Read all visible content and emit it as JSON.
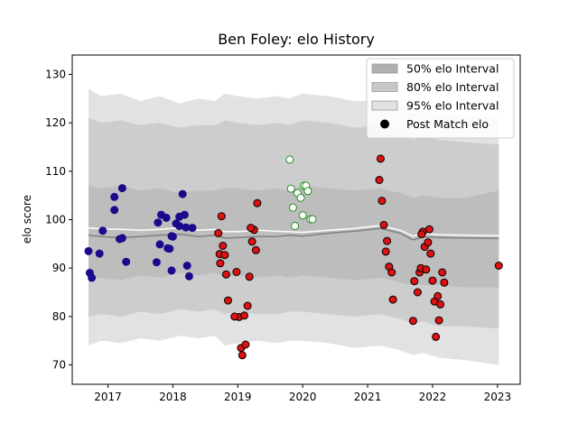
{
  "chart_data": {
    "type": "scatter",
    "title": "Ben Foley: elo History",
    "xlabel": "",
    "ylabel": "elo score",
    "xlim": [
      2016.45,
      2023.35
    ],
    "ylim": [
      66,
      134
    ],
    "x_ticks": [
      2017,
      2018,
      2019,
      2020,
      2021,
      2022,
      2023
    ],
    "y_ticks": [
      70,
      80,
      90,
      100,
      110,
      120,
      130
    ],
    "grid": false,
    "legend_position": "top-right",
    "legend": [
      {
        "label": "50% elo Interval",
        "kind": "patch",
        "color": "#b0b0b0"
      },
      {
        "label": "80% elo Interval",
        "kind": "patch",
        "color": "#c8c8c8"
      },
      {
        "label": "95% elo Interval",
        "kind": "patch",
        "color": "#e2e2e2"
      },
      {
        "label": "Post Match elo",
        "kind": "marker",
        "color": "#000000"
      }
    ],
    "bands": {
      "x": [
        2016.7,
        2016.9,
        2017.2,
        2017.5,
        2017.8,
        2018.1,
        2018.4,
        2018.65,
        2018.8,
        2019.0,
        2019.3,
        2019.6,
        2019.8,
        2020.0,
        2020.4,
        2020.8,
        2021.2,
        2021.5,
        2021.7,
        2021.85,
        2022.1,
        2022.5,
        2023.02
      ],
      "p95_low": [
        74,
        75,
        74.5,
        75.5,
        75,
        76,
        75.5,
        76,
        74,
        74.5,
        75,
        74.5,
        75,
        75,
        74.5,
        73.5,
        74,
        73,
        72,
        72.5,
        71.5,
        71,
        70
      ],
      "p95_high": [
        127,
        125.5,
        126,
        124.5,
        125.5,
        124,
        125,
        124.5,
        126,
        125.5,
        125,
        125.5,
        125,
        126,
        125.5,
        124.5,
        124.5,
        124,
        122,
        122.5,
        122,
        121.5,
        121
      ],
      "p80_low": [
        80,
        80.5,
        80,
        81,
        80.5,
        81.5,
        81,
        81.5,
        80.5,
        81,
        80.5,
        80.5,
        81,
        81,
        80.5,
        80,
        80.5,
        79.5,
        78.5,
        79,
        78,
        78,
        77.5
      ],
      "p80_high": [
        121,
        120,
        120.5,
        119.5,
        120,
        119,
        119.5,
        119.5,
        120.5,
        120,
        119.5,
        120,
        119.5,
        120.5,
        120,
        119,
        119.5,
        118.5,
        116.5,
        117,
        116.5,
        116,
        115.5
      ],
      "p50_low": [
        87.5,
        88,
        87.5,
        88.5,
        88,
        89,
        88.5,
        89,
        88,
        88.5,
        88,
        88.5,
        88,
        88.5,
        88,
        87.5,
        88,
        87,
        86.5,
        86.5,
        86.5,
        86,
        86
      ],
      "p50_high": [
        107,
        106.5,
        107,
        106,
        106.5,
        105.5,
        106,
        106,
        106.5,
        106.5,
        106,
        106.5,
        106,
        107,
        106.5,
        106,
        106.5,
        105.5,
        104.5,
        105,
        104.5,
        104.5,
        106
      ],
      "median": [
        96.8,
        96.5,
        96.3,
        96.5,
        96.8,
        97,
        96.5,
        96.8,
        96.2,
        96.3,
        96.5,
        96.5,
        96.8,
        96.6,
        97.2,
        97.6,
        98.2,
        97.2,
        95.8,
        96.4,
        96.3,
        96.2,
        96.1
      ],
      "mean": [
        98.3,
        98.1,
        98,
        97.8,
        98,
        98.3,
        97.8,
        98,
        97.5,
        97.5,
        97.8,
        97.6,
        97.5,
        97.4,
        97.8,
        98.2,
        98.8,
        97.8,
        96.6,
        97.2,
        96.9,
        96.8,
        96.7
      ]
    },
    "series": [
      {
        "color": "#1a0a8c",
        "edge": "#1a0a8c",
        "x": [
          2016.7,
          2016.72,
          2016.75,
          2016.87,
          2016.92,
          2017.1,
          2017.1,
          2017.18,
          2017.22,
          2017.22,
          2017.28,
          2017.75,
          2017.77,
          2017.8,
          2017.82,
          2017.9,
          2017.92,
          2017.95,
          2017.98,
          2018.0,
          2018.05,
          2018.1,
          2018.15,
          2018.18,
          2018.2,
          2018.22,
          2018.25,
          2018.3,
          2017.98,
          2018.1
        ],
        "y": [
          93.5,
          89,
          88,
          93,
          97.7,
          104.7,
          102,
          96,
          106.5,
          96.2,
          91.3,
          91.2,
          99.4,
          94.9,
          101,
          100.4,
          94.1,
          94,
          89.5,
          96.5,
          99.2,
          98.7,
          105.3,
          101,
          98.4,
          90.5,
          88.3,
          98.3,
          96.6,
          100.6
        ]
      },
      {
        "color": "#dd1111",
        "edge": "#000000",
        "x": [
          2018.7,
          2018.72,
          2018.73,
          2018.75,
          2018.77,
          2018.8,
          2018.82,
          2018.85,
          2018.98,
          2019.02,
          2019.05,
          2019.07,
          2019.1,
          2019.12,
          2019.15,
          2019.18,
          2019.22,
          2019.25,
          2019.28,
          2019.3,
          2018.95,
          2019.2
        ],
        "y": [
          97.2,
          92.9,
          91,
          100.7,
          94.6,
          92.7,
          88.7,
          83.3,
          89.2,
          79.9,
          73.5,
          72,
          80.2,
          74.2,
          82.2,
          88.2,
          95.5,
          97.9,
          93.7,
          103.4,
          80,
          98.3
        ]
      },
      {
        "color": "#ffffff",
        "edge": "#1f8f1f",
        "x": [
          2019.8,
          2019.82,
          2019.85,
          2019.88,
          2019.92,
          2019.97,
          2020.02,
          2020.05,
          2020.08,
          2020.12,
          2020.15,
          2020.0
        ],
        "y": [
          112.4,
          106.4,
          102.5,
          98.7,
          105.5,
          104.5,
          107,
          107,
          105.9,
          100.1,
          100.1,
          100.9
        ]
      },
      {
        "color": "#dd1111",
        "edge": "#000000",
        "x": [
          2021.18,
          2021.2,
          2021.22,
          2021.25,
          2021.28,
          2021.3,
          2021.33,
          2021.37,
          2021.39,
          2021.7,
          2021.72,
          2021.77,
          2021.8,
          2021.82,
          2021.85,
          2021.88,
          2021.9,
          2021.93,
          2021.95,
          2022.0,
          2022.03,
          2022.05,
          2022.08,
          2022.1,
          2022.12,
          2022.15,
          2022.18,
          2023.02,
          2021.83,
          2021.97
        ],
        "y": [
          108.2,
          112.6,
          103.9,
          98.9,
          93.4,
          95.6,
          90.3,
          89.1,
          83.5,
          79.1,
          87.3,
          85,
          89.1,
          90,
          97.5,
          94.4,
          89.7,
          95.3,
          98,
          87.4,
          83.1,
          75.8,
          84.2,
          79.2,
          82.5,
          89.1,
          87,
          90.5,
          97,
          93
        ]
      }
    ]
  }
}
